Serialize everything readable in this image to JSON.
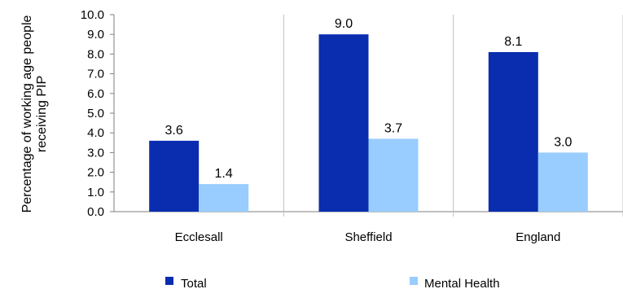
{
  "chart_data": {
    "type": "bar",
    "categories": [
      "Ecclesall",
      "Sheffield",
      "England"
    ],
    "series": [
      {
        "name": "Total",
        "values": [
          3.6,
          9.0,
          8.1
        ],
        "labels": [
          "3.6",
          "9.0",
          "8.1"
        ],
        "color": "#0a2db0"
      },
      {
        "name": "Mental Health",
        "values": [
          1.4,
          3.7,
          3.0
        ],
        "labels": [
          "1.4",
          "3.7",
          "3.0"
        ],
        "color": "#99ccff"
      }
    ],
    "ylabel_lines": [
      "Percentage of working age people",
      "receiving PIP"
    ],
    "ylim": [
      0,
      10
    ],
    "yticks": [
      "0.0",
      "1.0",
      "2.0",
      "3.0",
      "4.0",
      "5.0",
      "6.0",
      "7.0",
      "8.0",
      "9.0",
      "10.0"
    ],
    "grid": false,
    "category_dividers": true,
    "legend_position": "bottom"
  }
}
